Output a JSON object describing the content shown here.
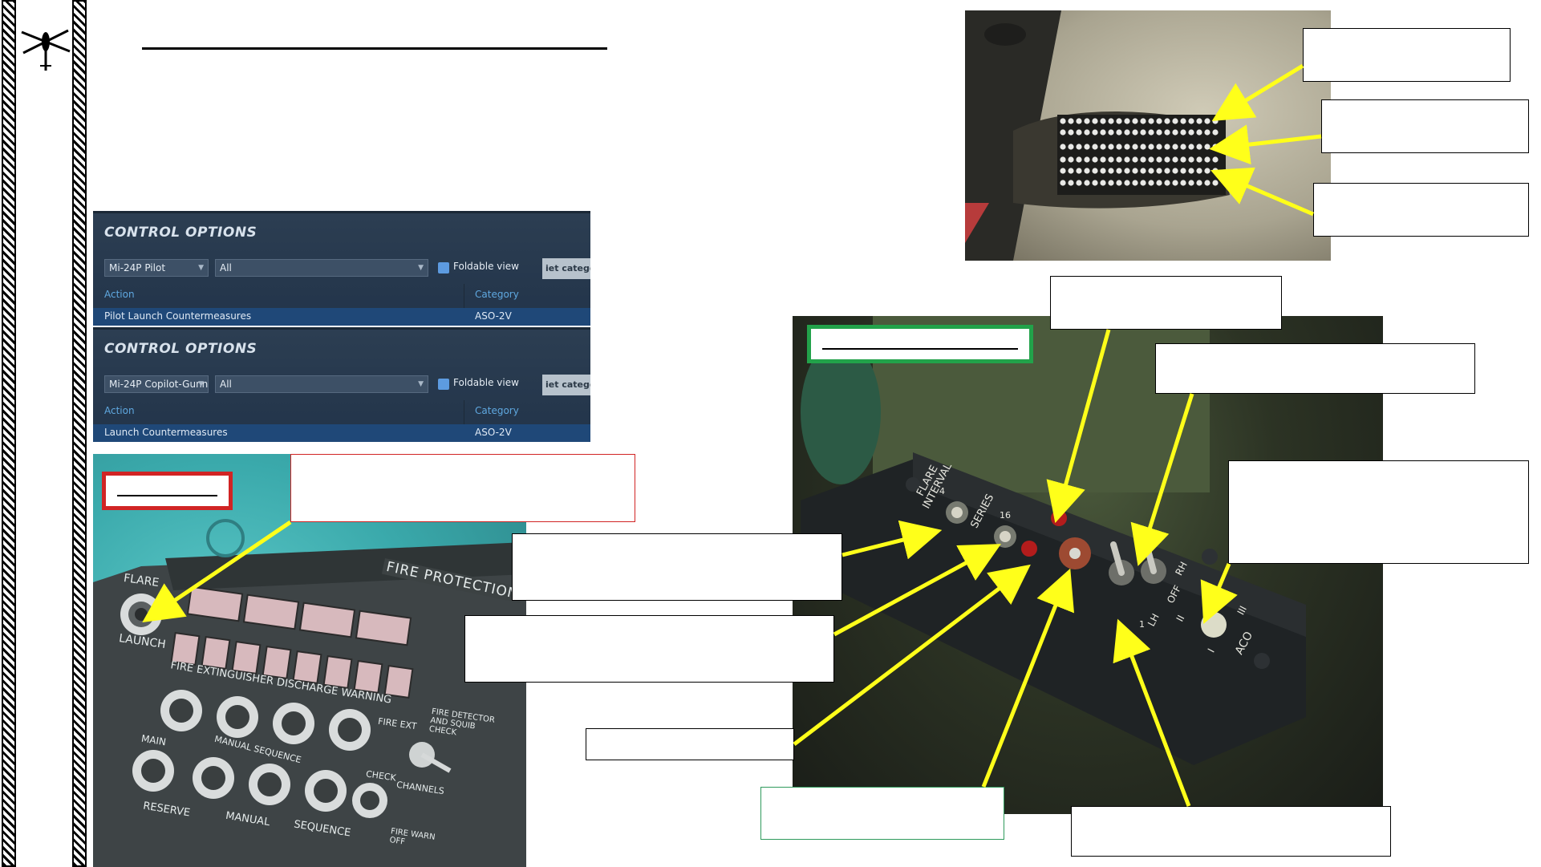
{
  "control_options_pilot": {
    "title": "CONTROL OPTIONS",
    "aircraft": "Mi-24P Pilot",
    "category_filter": "All",
    "foldable_view": "Foldable view",
    "button": "iet catego",
    "col_action": "Action",
    "col_category": "Category",
    "row_action": "Pilot Launch Countermeasures",
    "row_category": "ASO-2V"
  },
  "control_options_copilot": {
    "title": "CONTROL OPTIONS",
    "aircraft": "Mi-24P Copilot-Gunn",
    "category_filter": "All",
    "foldable_view": "Foldable view",
    "button": "iet catego",
    "col_action": "Action",
    "col_category": "Category",
    "row_action": "Launch Countermeasures",
    "row_category": "ASO-2V"
  },
  "flare_panel_photo": {
    "flare": "FLARE",
    "launch": "LAUNCH",
    "fire_protection": "FIRE PROTECTION",
    "discharge_warning": "FIRE EXTINGUISHER DISCHARGE WARNING",
    "main": "MAIN",
    "manual_sequence": "MANUAL SEQUENCE",
    "reserve": "RESERVE",
    "manual": "MANUAL",
    "sequence": "SEQUENCE",
    "fire_ext": "FIRE EXT",
    "check": "CHECK",
    "channels": "CHANNELS",
    "fire_detector": "FIRE DETECTOR AND SQUIB CHECK",
    "fire_warn_off": "FIRE WARN OFF"
  },
  "aso_panel_photo": {
    "flare_interval": "FLARE INTERVAL",
    "series": "SERIES",
    "lh": "LH",
    "rh": "RH",
    "off": "OFF",
    "aco": "ACO",
    "n2": "2",
    "n4": "4",
    "n16": "16",
    "n1": "1",
    "roman1": "I",
    "roman2": "II",
    "roman3": "III"
  },
  "colors": {
    "arrow": "#ffff1a",
    "red_frame": "#d12424",
    "green_frame": "#22a24a",
    "panel_bg": "#2c3e52"
  }
}
